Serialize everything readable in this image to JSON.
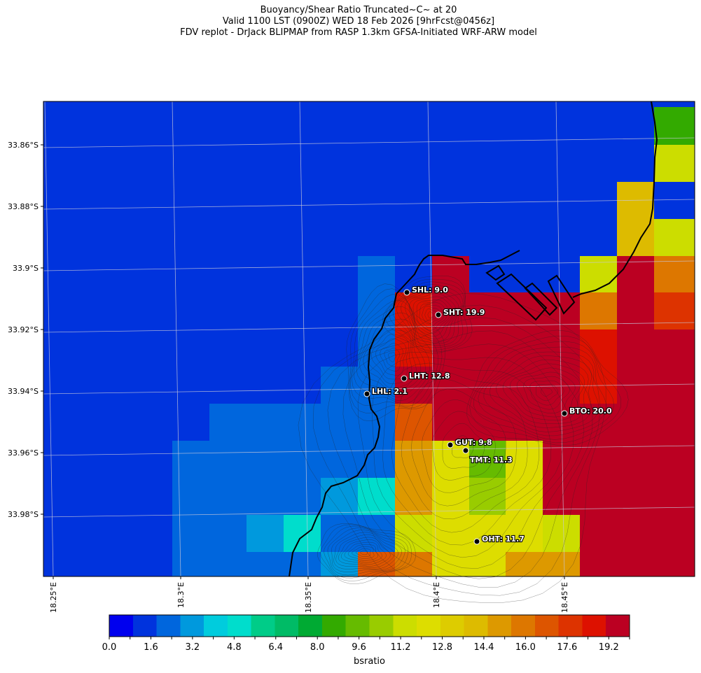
{
  "header": {
    "title_line1": "Buoyancy/Shear Ratio Truncated~C~    at 20",
    "title_line2": "Valid 1100 LST (0900Z) WED 18 Feb 2026 [9hrFcst@0456z]",
    "title_line3": "FDV replot - DrJack BLIPMAP from RASP 1.3km GFSA-Initiated WRF-ARW model"
  },
  "chart_data": {
    "type": "heatmap",
    "title": "Buoyancy/Shear Ratio Truncated~C~    at 20",
    "lat_tick_labels": [
      "33.86°S",
      "33.88°S",
      "33.9°S",
      "33.92°S",
      "33.94°S",
      "33.96°S",
      "33.98°S"
    ],
    "lon_tick_labels": [
      "18.25°E",
      "18.3°E",
      "18.35°E",
      "18.4°E",
      "18.45°E"
    ],
    "grid": true,
    "colorbar": {
      "label": "bsratio",
      "range": [
        0.0,
        20.0
      ],
      "tick_labels": [
        "0.0",
        "1.6",
        "3.2",
        "4.8",
        "6.4",
        "8.0",
        "9.6",
        "11.2",
        "12.8",
        "14.4",
        "16.0",
        "17.6",
        "19.2"
      ],
      "colors": [
        "#0000ee",
        "#0033dd",
        "#0066dd",
        "#0099dd",
        "#00ccdd",
        "#00ddcc",
        "#00cc88",
        "#00bb66",
        "#00aa33",
        "#33aa00",
        "#66bb00",
        "#99cc00",
        "#ccdd00",
        "#dddd00",
        "#ddcc00",
        "#ddbb00",
        "#dd9900",
        "#dd7700",
        "#dd5500",
        "#dd3300",
        "#dd1100",
        "#bb0022"
      ]
    },
    "stations": [
      {
        "id": "SHL",
        "label": "SHL: 9.0",
        "value": 9.0
      },
      {
        "id": "SHT",
        "label": "SHT: 19.9",
        "value": 19.9
      },
      {
        "id": "LHT",
        "label": "LHT: 12.8",
        "value": 12.8
      },
      {
        "id": "LHL",
        "label": "LHL: 2.1",
        "value": 2.1
      },
      {
        "id": "BTO",
        "label": "BTO: 20.0",
        "value": 20.0
      },
      {
        "id": "GUT",
        "label": "GUT: 9.8",
        "value": 9.8
      },
      {
        "id": "TMT",
        "label": "TMT: 11.3",
        "value": 11.3
      },
      {
        "id": "OHT",
        "label": "OHT: 11.7",
        "value": 11.7
      }
    ]
  }
}
